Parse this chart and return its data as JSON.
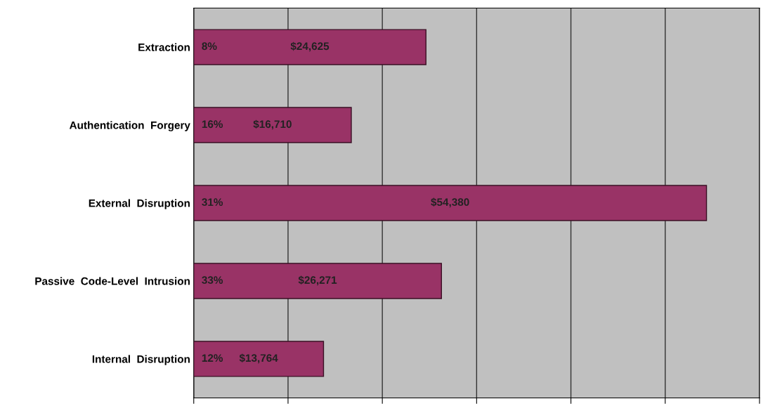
{
  "chart_data": {
    "type": "bar",
    "orientation": "horizontal",
    "categories": [
      "Extraction",
      "Authentication  Forgery",
      "External  Disruption",
      "Passive  Code-Level  Intrusion",
      "Internal  Disruption"
    ],
    "values": [
      24625,
      16710,
      54380,
      26271,
      13764
    ],
    "value_labels": [
      "$24,625",
      "$16,710",
      "$54,380",
      "$26,271",
      "$13,764"
    ],
    "color": "#993366",
    "annotations": [
      "8%",
      "16%",
      "31%",
      "33%",
      "12%"
    ],
    "xlim": [
      0,
      60000
    ],
    "xticks": [
      {
        "value": 0,
        "label": null
      },
      {
        "value": 10000,
        "label": null
      },
      {
        "value": 20000,
        "label": null
      },
      {
        "value": 30000,
        "label": null
      },
      {
        "value": 40000,
        "label": null
      },
      {
        "value": 50000,
        "label": null
      },
      {
        "value": 60000,
        "label": null
      }
    ],
    "grid": "x",
    "tick_labels": "y"
  }
}
